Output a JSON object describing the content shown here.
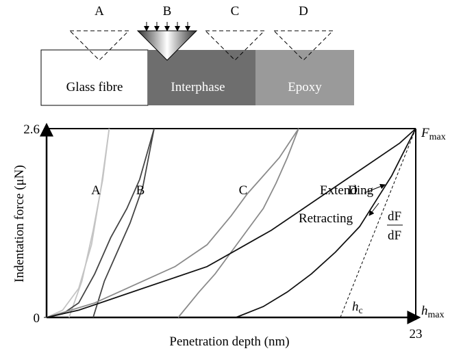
{
  "diagram": {
    "labels": [
      "A",
      "B",
      "C",
      "D"
    ],
    "regions": [
      "Glass fibre",
      "Interphase",
      "Epoxy"
    ]
  },
  "chart_data": {
    "type": "line",
    "x_label": "Penetration depth (nm)",
    "y_label": "Indentation force (μN)",
    "xlim": [
      0,
      23
    ],
    "ylim": [
      0,
      2.6
    ],
    "xticks": [
      23
    ],
    "yticks": [
      0,
      2.6
    ],
    "series": [
      {
        "name": "A",
        "color": "#c4c4c4",
        "loading": {
          "x": [
            0,
            1,
            2,
            2.8,
            3.4,
            3.9
          ],
          "values": [
            0,
            0.1,
            0.4,
            1.0,
            1.8,
            2.6
          ]
        },
        "unloading": {
          "x": [
            1.4,
            2.2,
            2.9,
            3.5,
            3.9
          ],
          "values": [
            0,
            0.5,
            1.2,
            1.9,
            2.6
          ]
        }
      },
      {
        "name": "B",
        "color": "#444444",
        "loading": {
          "x": [
            0,
            1,
            2,
            3,
            4,
            5,
            5.8,
            6.7
          ],
          "values": [
            0,
            0.05,
            0.2,
            0.6,
            1.1,
            1.5,
            1.9,
            2.6
          ]
        },
        "unloading": {
          "x": [
            2.9,
            3.6,
            4.4,
            5.2,
            6,
            6.7
          ],
          "values": [
            0,
            0.5,
            0.9,
            1.3,
            1.8,
            2.6
          ]
        }
      },
      {
        "name": "C",
        "color": "#8a8a8a",
        "loading": {
          "x": [
            0,
            3,
            6,
            8,
            10,
            11.5,
            12.5,
            13.5,
            14.5,
            15.7
          ],
          "values": [
            0,
            0.2,
            0.5,
            0.7,
            1.0,
            1.4,
            1.7,
            1.95,
            2.2,
            2.6
          ]
        },
        "unloading": {
          "x": [
            8.2,
            9.5,
            10.5,
            11.5,
            12.5,
            13.5,
            14.3,
            15,
            15.7
          ],
          "values": [
            0,
            0.35,
            0.6,
            0.9,
            1.2,
            1.5,
            1.85,
            2.2,
            2.6
          ]
        }
      },
      {
        "name": "D",
        "color": "#111111",
        "loading": {
          "x": [
            0,
            2,
            4,
            6,
            8,
            10,
            12,
            14,
            16,
            18,
            20,
            22,
            23
          ],
          "values": [
            0,
            0.1,
            0.25,
            0.4,
            0.55,
            0.7,
            0.95,
            1.2,
            1.5,
            1.8,
            2.1,
            2.4,
            2.6
          ]
        },
        "unloading": {
          "x": [
            11.8,
            13.5,
            15,
            16.5,
            18,
            19.5,
            20.5,
            21.5,
            22.3,
            23
          ],
          "values": [
            0,
            0.15,
            0.35,
            0.6,
            0.9,
            1.25,
            1.6,
            1.95,
            2.3,
            2.6
          ]
        }
      }
    ],
    "tangent": {
      "x": [
        18.3,
        23
      ],
      "values": [
        0,
        2.6
      ]
    },
    "annotations": {
      "extending": "Extending",
      "retracting": "Retracting",
      "f_max": {
        "symbol": "F",
        "sub": "max"
      },
      "h_max": {
        "symbol": "h",
        "sub": "max"
      },
      "h_c": {
        "symbol": "h",
        "sub": "c"
      },
      "slope": {
        "numerator": "dF",
        "denominator": "dF"
      }
    }
  }
}
